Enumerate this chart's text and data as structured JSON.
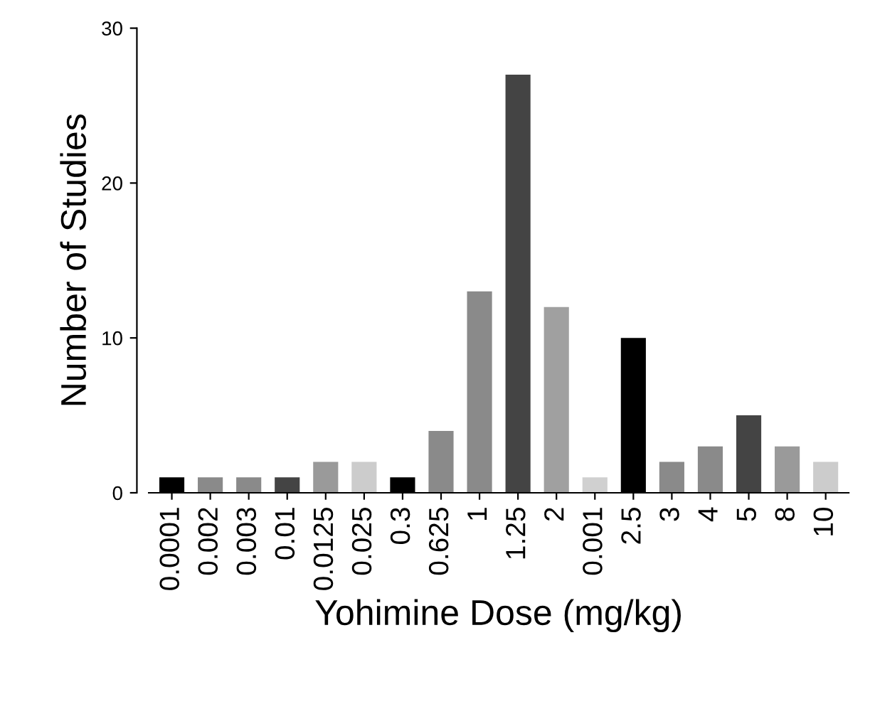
{
  "chart_data": {
    "type": "bar",
    "xlabel": "Yohimine Dose (mg/kg)",
    "ylabel": "Number of Studies",
    "categories": [
      "0.0001",
      "0.002",
      "0.003",
      "0.01",
      "0.0125",
      "0.025",
      "0.3",
      "0.625",
      "1",
      "1.25",
      "2",
      "0.001",
      "2.5",
      "3",
      "4",
      "5",
      "8",
      "10"
    ],
    "values": [
      1,
      1,
      1,
      1,
      2,
      2,
      1,
      4,
      13,
      27,
      12,
      1,
      10,
      2,
      3,
      5,
      3,
      2
    ],
    "colors": [
      "#000000",
      "#8a8a8a",
      "#8a8a8a",
      "#444444",
      "#9a9a9a",
      "#cccccc",
      "#000000",
      "#8a8a8a",
      "#8a8a8a",
      "#444444",
      "#a0a0a0",
      "#d0d0d0",
      "#000000",
      "#8a8a8a",
      "#8a8a8a",
      "#444444",
      "#9a9a9a",
      "#cccccc"
    ],
    "ylim": [
      0,
      30
    ],
    "yticks": [
      0,
      10,
      20,
      30
    ],
    "grid": false,
    "legend": false
  }
}
